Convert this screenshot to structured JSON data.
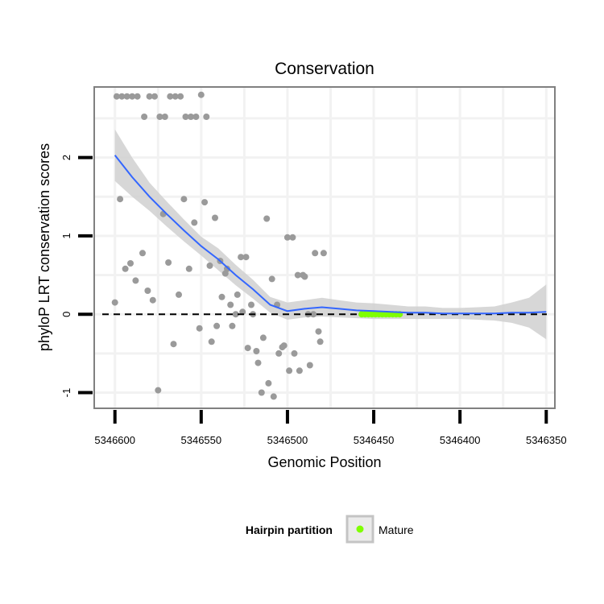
{
  "chart_data": {
    "type": "scatter",
    "title": "Conservation",
    "xlabel": "Genomic Position",
    "ylabel": "phyloP LRT conservation scores",
    "xlim": [
      5346612,
      5346345
    ],
    "ylim": [
      -1.2,
      2.9
    ],
    "x_reversed": true,
    "x_ticks": [
      5346600,
      5346550,
      5346500,
      5346450,
      5346400,
      5346350
    ],
    "x_tick_labels": [
      "5346600",
      "5346550",
      "5346500",
      "5346450",
      "5346400",
      "5346350"
    ],
    "y_ticks": [
      -1,
      0,
      1,
      2
    ],
    "y_tick_labels": [
      "-1",
      "0",
      "1",
      "2"
    ],
    "reference_line_y": 0,
    "colors": {
      "points": "#9a9a9a",
      "mature": "#7fff00",
      "smooth_line": "#3366ff",
      "ribbon": "#d0d0d0",
      "panel_border": "#808080",
      "grid": "#f2f2f2"
    },
    "series": [
      {
        "name": "points",
        "x": [
          5346600,
          5346597,
          5346594,
          5346591,
          5346588,
          5346584,
          5346581,
          5346578,
          5346575,
          5346572,
          5346569,
          5346566,
          5346563,
          5346560,
          5346557,
          5346554,
          5346551,
          5346548,
          5346545,
          5346542,
          5346539,
          5346536,
          5346533,
          5346530,
          5346527,
          5346524,
          5346521,
          5346518,
          5346515,
          5346512,
          5346509,
          5346506,
          5346503,
          5346500,
          5346497,
          5346494,
          5346491,
          5346488,
          5346485,
          5346482,
          5346479,
          5346599,
          5346596,
          5346593,
          5346590,
          5346587,
          5346583,
          5346580,
          5346577,
          5346574,
          5346571,
          5346568,
          5346565,
          5346562,
          5346559,
          5346556,
          5346553,
          5346550,
          5346547,
          5346544,
          5346541,
          5346538,
          5346535,
          5346532,
          5346529,
          5346526,
          5346523,
          5346520,
          5346517,
          5346514,
          5346511,
          5346508,
          5346505,
          5346502,
          5346499,
          5346496,
          5346493,
          5346490,
          5346487,
          5346484,
          5346481
        ],
        "y": [
          0.15,
          1.47,
          0.58,
          0.65,
          0.43,
          0.78,
          0.3,
          0.18,
          -0.97,
          1.28,
          0.66,
          -0.38,
          0.25,
          1.47,
          0.58,
          1.17,
          -0.18,
          1.43,
          0.62,
          1.23,
          0.68,
          0.52,
          0.12,
          0.0,
          0.73,
          0.73,
          0.12,
          -0.47,
          -1.0,
          1.22,
          0.45,
          0.12,
          -0.42,
          0.98,
          0.98,
          0.5,
          0.5,
          0.0,
          0.0,
          -0.22,
          0.78,
          2.78,
          2.78,
          2.78,
          2.78,
          2.78,
          2.52,
          2.78,
          2.78,
          2.52,
          2.52,
          2.78,
          2.78,
          2.78,
          2.52,
          2.52,
          2.52,
          2.8,
          2.52,
          -0.35,
          -0.15,
          0.22,
          0.58,
          -0.15,
          0.25,
          0.03,
          -0.43,
          0.0,
          -0.62,
          -0.3,
          -0.88,
          -1.05,
          -0.5,
          -0.4,
          -0.72,
          -0.5,
          -0.72,
          0.48,
          -0.65,
          0.78,
          -0.35
        ]
      },
      {
        "name": "Mature",
        "x": [
          5346457,
          5346455,
          5346453,
          5346451,
          5346449,
          5346447,
          5346445,
          5346443,
          5346441,
          5346439,
          5346437,
          5346435
        ],
        "y": [
          0.0,
          0.0,
          0.0,
          0.0,
          0.0,
          0.0,
          0.0,
          0.0,
          0.0,
          0.0,
          0.0,
          0.0
        ]
      },
      {
        "name": "loess fit",
        "x": [
          5346600,
          5346590,
          5346580,
          5346570,
          5346560,
          5346550,
          5346540,
          5346530,
          5346520,
          5346510,
          5346500,
          5346490,
          5346480,
          5346470,
          5346460,
          5346450,
          5346440,
          5346430,
          5346420,
          5346410,
          5346400,
          5346390,
          5346380,
          5346370,
          5346360,
          5346350
        ],
        "y": [
          2.03,
          1.75,
          1.5,
          1.28,
          1.07,
          0.87,
          0.7,
          0.5,
          0.32,
          0.12,
          0.04,
          0.07,
          0.09,
          0.07,
          0.05,
          0.04,
          0.03,
          0.02,
          0.02,
          0.01,
          0.01,
          0.01,
          0.01,
          0.02,
          0.02,
          0.03
        ],
        "ci_low": [
          1.7,
          1.5,
          1.32,
          1.12,
          0.93,
          0.75,
          0.56,
          0.37,
          0.2,
          0.02,
          -0.07,
          -0.04,
          -0.03,
          -0.04,
          -0.05,
          -0.06,
          -0.06,
          -0.06,
          -0.06,
          -0.06,
          -0.06,
          -0.07,
          -0.08,
          -0.11,
          -0.17,
          -0.32
        ],
        "ci_high": [
          2.36,
          2.0,
          1.68,
          1.44,
          1.21,
          0.99,
          0.84,
          0.63,
          0.44,
          0.22,
          0.15,
          0.18,
          0.21,
          0.18,
          0.15,
          0.14,
          0.12,
          0.1,
          0.1,
          0.08,
          0.08,
          0.09,
          0.1,
          0.15,
          0.21,
          0.38
        ]
      }
    ],
    "legend": {
      "title": "Hairpin partition",
      "entries": [
        "Mature"
      ],
      "position": "bottom"
    }
  }
}
